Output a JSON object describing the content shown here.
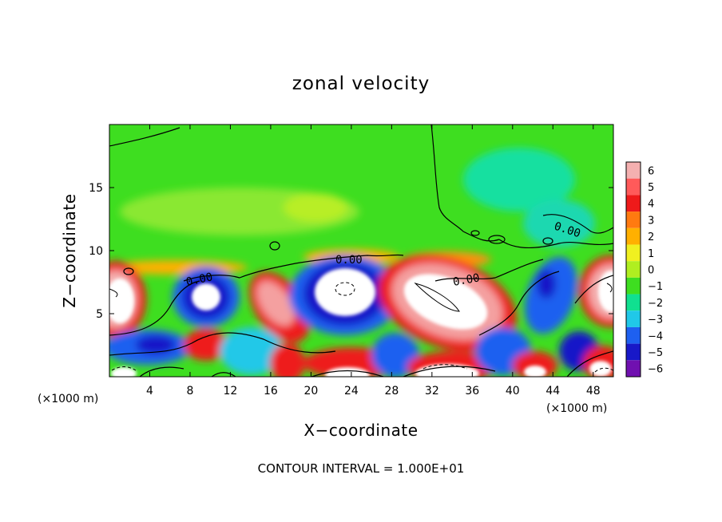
{
  "chart_data": {
    "type": "heatmap",
    "title": "zonal velocity",
    "xlabel": "X−coordinate",
    "ylabel": "Z−coordinate",
    "x_unit": "(×1000 m)",
    "xlim": [
      0,
      50
    ],
    "ylim": [
      0,
      20
    ],
    "x_ticks": [
      "4",
      "8",
      "12",
      "16",
      "20",
      "24",
      "28",
      "32",
      "36",
      "40",
      "44",
      "48"
    ],
    "y_ticks": [
      "5",
      "10",
      "15"
    ],
    "colorbar": {
      "ticks": [
        "6",
        "5",
        "4",
        "3",
        "2",
        "1",
        "0",
        "−1",
        "−2",
        "−3",
        "−4",
        "−5",
        "−6"
      ],
      "colors": [
        "#f4b0b0",
        "#ff5a5a",
        "#ee1a1a",
        "#ff7a10",
        "#ffb000",
        "#f0f020",
        "#b0ee20",
        "#3ede20",
        "#10e090",
        "#20c8e8",
        "#1e60f0",
        "#1818c8",
        "#7010b0"
      ]
    },
    "contour_labels": [
      "0.00",
      "0.00",
      "0.00",
      "0.00"
    ],
    "contour_interval": "CONTOUR INTERVAL = 1.000E+01",
    "grid": false
  }
}
